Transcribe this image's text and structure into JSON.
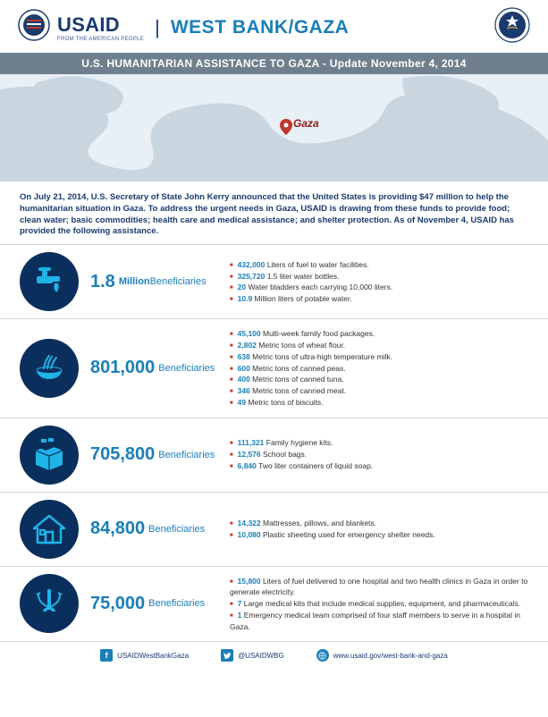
{
  "header": {
    "brand": "USAID",
    "brand_sub": "FROM THE AMERICAN PEOPLE",
    "region": "WEST BANK/GAZA"
  },
  "subtitle": "U.S. HUMANITARIAN ASSISTANCE TO GAZA - Update November 4, 2014",
  "map": {
    "label": "Gaza",
    "land_color": "#c9d6e0",
    "sea_color": "#e8eff5",
    "pin_color": "#c0392b"
  },
  "intro": "On July 21, 2014, U.S. Secretary of State John Kerry announced that the United States is providing $47 million to help the humanitarian situation in Gaza.  To address the urgent needs in Gaza, USAID is drawing from these funds to provide food; clean water; basic commodities; health care and medical assistance; and shelter protection.  As of November 4, USAID has provided the following assistance.",
  "colors": {
    "accent_blue": "#1a7fb8",
    "navy": "#0b2f5c",
    "header_navy": "#1a3a6e",
    "bar_grey": "#6f7f8d",
    "bullet_red": "#c0392b",
    "divider": "#cfd7de"
  },
  "rows": [
    {
      "icon": "faucet",
      "stat_number": "1.8",
      "stat_unit": "Million",
      "stat_word": "Beneficiaries",
      "bullets": [
        {
          "v": "432,000",
          "t": "Liters of fuel to water facilities."
        },
        {
          "v": "325,720",
          "t": "1.5 liter water bottles."
        },
        {
          "v": "20",
          "t": "Water bladders each carrying 10,000 liters."
        },
        {
          "v": "10.9",
          "t": "Million liters of potable water."
        }
      ]
    },
    {
      "icon": "bowl",
      "stat_number": "801,000",
      "stat_unit": "",
      "stat_word": "Beneficiaries",
      "bullets": [
        {
          "v": "45,100",
          "t": "Multi-week family food packages."
        },
        {
          "v": "2,802",
          "t": "Metric tons of wheat flour."
        },
        {
          "v": "638",
          "t": "Metric tons of ultra-high temperature milk."
        },
        {
          "v": "600",
          "t": "Metric tons of canned peas."
        },
        {
          "v": "400",
          "t": "Metric tons of canned tuna."
        },
        {
          "v": "346",
          "t": "Metric tons of canned meat."
        },
        {
          "v": "49",
          "t": "Metric tons of biscuits."
        }
      ]
    },
    {
      "icon": "box",
      "stat_number": "705,800",
      "stat_unit": "",
      "stat_word": "Beneficiaries",
      "bullets": [
        {
          "v": "111,321",
          "t": "Family hygiene kits."
        },
        {
          "v": "12,576",
          "t": "School bags."
        },
        {
          "v": "6,840",
          "t": "Two liter containers of liquid soap."
        }
      ]
    },
    {
      "icon": "house",
      "stat_number": "84,800",
      "stat_unit": "",
      "stat_word": "Beneficiaries",
      "bullets": [
        {
          "v": "14,322",
          "t": "Mattresses, pillows, and blankets."
        },
        {
          "v": "10,080",
          "t": "Plastic sheeting used for emergency shelter needs."
        }
      ]
    },
    {
      "icon": "medical",
      "stat_number": "75,000",
      "stat_unit": "",
      "stat_word": "Beneficiaries",
      "bullets": [
        {
          "v": "15,800",
          "t": "Liters of fuel delivered to one hospital and two health clinics in Gaza in order to generate electricity."
        },
        {
          "v": "7",
          "t": "Large medical kits that include medical supplies, equipment, and pharmaceuticals."
        },
        {
          "v": "1",
          "t": "Emergency medical team comprised of four staff members to serve in a hospital in Gaza."
        }
      ]
    }
  ],
  "footer": {
    "facebook": "USAIDWestBankGaza",
    "twitter": "@USAIDWBG",
    "website": "www.usaid.gov/west-bank-and-gaza"
  }
}
